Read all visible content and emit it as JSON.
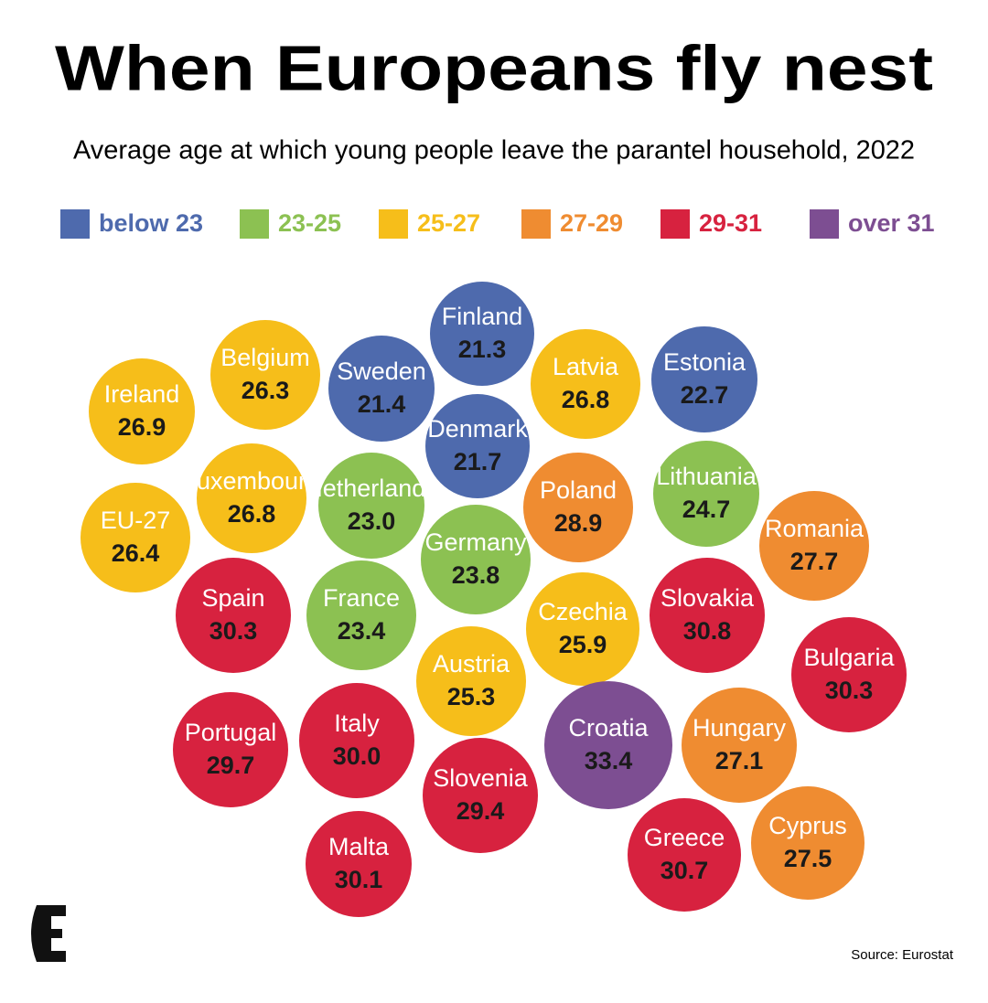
{
  "chart_data": {
    "type": "bubble",
    "title": "When Europeans fly nest",
    "subtitle": "Average age at which young people leave the parantel household, 2022",
    "legend": [
      {
        "name": "below 23",
        "color": "#4e6aad"
      },
      {
        "name": "23-25",
        "color": "#8cc152"
      },
      {
        "name": "25-27",
        "color": "#f6be1a"
      },
      {
        "name": "27-29",
        "color": "#ef8c31"
      },
      {
        "name": "29-31",
        "color": "#d7223f"
      },
      {
        "name": "over 31",
        "color": "#7d4e92"
      }
    ],
    "categories": [
      "Ireland",
      "Belgium",
      "Sweden",
      "Finland",
      "Latvia",
      "Estonia",
      "Denmark",
      "Luxembourg",
      "Netherlands",
      "Poland",
      "Lithuania",
      "EU-27",
      "Romania",
      "Germany",
      "Spain",
      "France",
      "Czechia",
      "Slovakia",
      "Austria",
      "Bulgaria",
      "Portugal",
      "Italy",
      "Croatia",
      "Hungary",
      "Slovenia",
      "Malta",
      "Greece",
      "Cyprus"
    ],
    "values": [
      26.9,
      26.3,
      21.4,
      21.3,
      26.8,
      22.7,
      21.7,
      26.8,
      23,
      28.9,
      24.7,
      26.4,
      27.7,
      23.8,
      30.3,
      23.4,
      25.9,
      30.8,
      25.3,
      30.3,
      29.7,
      30,
      33.4,
      27.1,
      29.4,
      30.1,
      30.7,
      27.5
    ],
    "value_labels": [
      "26.9",
      "26.3",
      "21.4",
      "21.3",
      "26.8",
      "22.7",
      "21.7",
      "26.8",
      "23.0",
      "28.9",
      "24.7",
      "26.4",
      "27.7",
      "23.8",
      "30.3",
      "23.4",
      "25.9",
      "30.8",
      "25.3",
      "30.3",
      "29.7",
      "30.0",
      "33.4",
      "27.1",
      "29.4",
      "30.1",
      "30.7",
      "27.5"
    ],
    "colors": [
      "#f6be1a",
      "#f6be1a",
      "#4e6aad",
      "#4e6aad",
      "#f6be1a",
      "#4e6aad",
      "#4e6aad",
      "#f6be1a",
      "#8cc152",
      "#ef8c31",
      "#8cc152",
      "#f6be1a",
      "#ef8c31",
      "#8cc152",
      "#d7223f",
      "#8cc152",
      "#f6be1a",
      "#d7223f",
      "#f6be1a",
      "#d7223f",
      "#d7223f",
      "#d7223f",
      "#7d4e92",
      "#ef8c31",
      "#d7223f",
      "#d7223f",
      "#d7223f",
      "#ef8c31"
    ],
    "source": "Source: Eurostat"
  }
}
